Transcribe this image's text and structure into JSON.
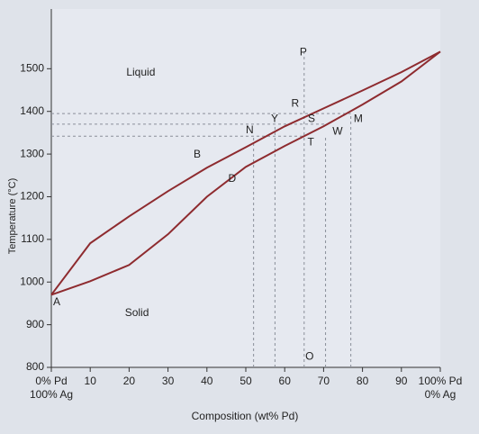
{
  "chart_data": {
    "type": "line",
    "xlabel": "Composition (wt% Pd)",
    "ylabel": "Temperature (°C)",
    "xlim": [
      0,
      100
    ],
    "ylim": [
      800,
      1640
    ],
    "xticks": [
      {
        "value": 0,
        "label": "0% Pd"
      },
      10,
      20,
      30,
      40,
      50,
      60,
      70,
      80,
      90,
      {
        "value": 100,
        "label": "100% Pd"
      }
    ],
    "xsublabels": [
      {
        "value": 0,
        "label": "100% Ag"
      },
      {
        "value": 100,
        "label": "0% Ag"
      }
    ],
    "yticks": [
      800,
      900,
      1000,
      1100,
      1200,
      1300,
      1400,
      1500
    ],
    "x": [
      0,
      10,
      20,
      30,
      40,
      50,
      60,
      70,
      80,
      90,
      100
    ],
    "series": [
      {
        "color": "#8e2b2f",
        "values": [
          970,
          1091,
          1154,
          1213,
          1268,
          1316,
          1365,
          1407,
          1449,
          1492,
          1540
        ]
      },
      {
        "color": "#8e2b2f",
        "values": [
          970,
          1002,
          1040,
          1112,
          1200,
          1270,
          1319,
          1365,
          1416,
          1470,
          1540
        ]
      }
    ],
    "hlines": [
      {
        "y": 1395,
        "x": 77
      },
      {
        "y": 1370,
        "x": 71
      },
      {
        "y": 1342,
        "x": 65
      }
    ],
    "vlines": [
      {
        "x": 52,
        "y": 1340
      },
      {
        "x": 57.5,
        "y": 1370
      },
      {
        "x": 65,
        "y": 1540
      },
      {
        "x": 70.5,
        "y": 1342
      },
      {
        "x": 77,
        "y": 1395
      }
    ],
    "annotations": [
      {
        "text": "Liquid",
        "x": 23,
        "y": 1490
      },
      {
        "text": "Solid",
        "x": 22,
        "y": 927
      },
      {
        "text": "P",
        "x": 64.8,
        "y": 1538
      },
      {
        "text": "R",
        "x": 62.7,
        "y": 1418
      },
      {
        "text": "Y",
        "x": 57.4,
        "y": 1382
      },
      {
        "text": "S",
        "x": 66.9,
        "y": 1382
      },
      {
        "text": "M",
        "x": 78.9,
        "y": 1382
      },
      {
        "text": "N",
        "x": 51,
        "y": 1355
      },
      {
        "text": "T",
        "x": 66.7,
        "y": 1327
      },
      {
        "text": "W",
        "x": 73.6,
        "y": 1352
      },
      {
        "text": "B",
        "x": 37.5,
        "y": 1298
      },
      {
        "text": "D",
        "x": 46.5,
        "y": 1241
      },
      {
        "text": "A",
        "x": 1.4,
        "y": 952
      },
      {
        "text": "O",
        "x": 66.4,
        "y": 825
      }
    ]
  }
}
